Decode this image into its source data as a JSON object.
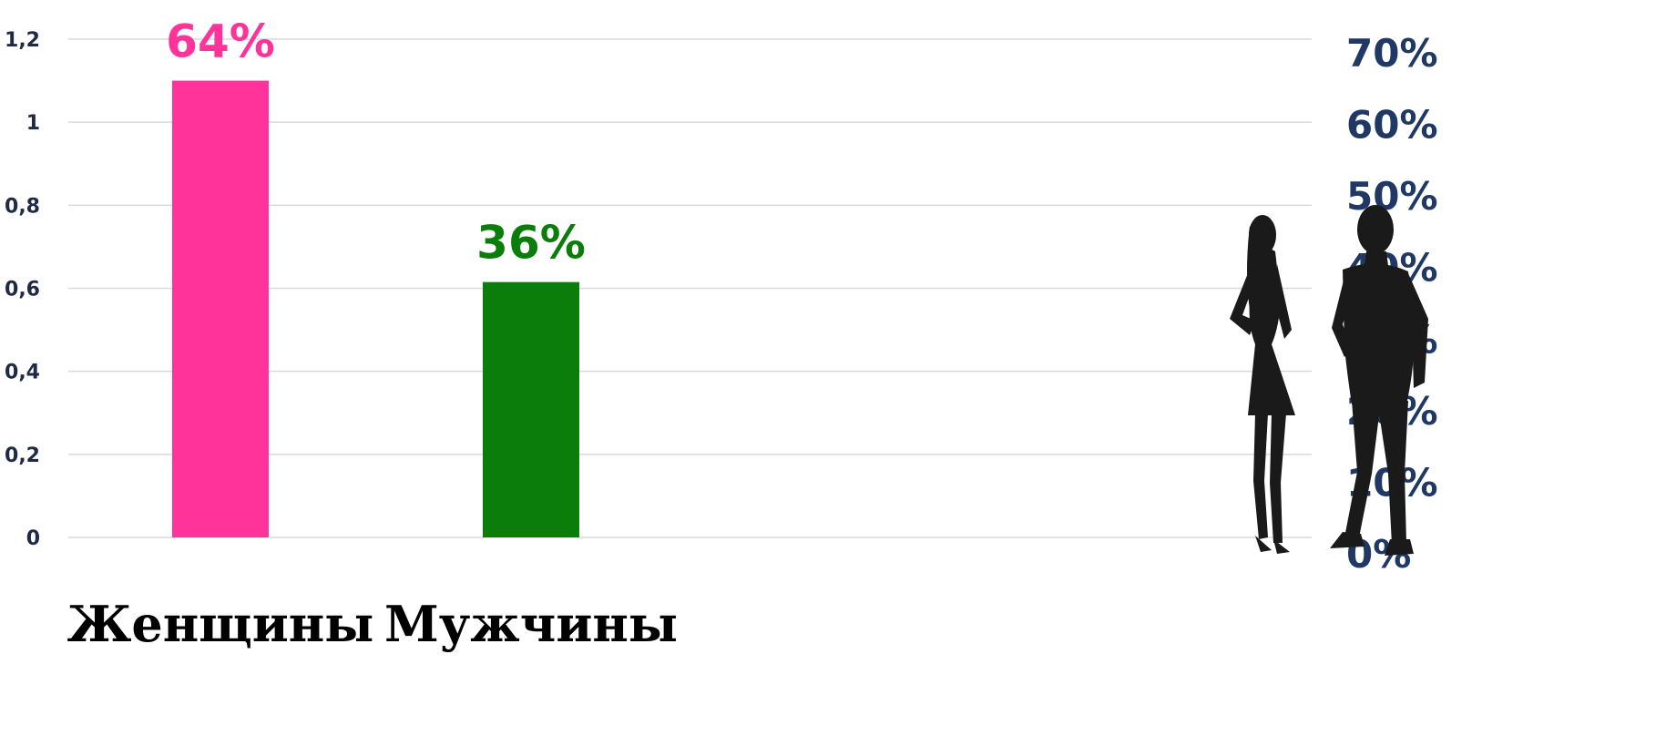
{
  "chart_data": {
    "type": "bar",
    "categories": [
      "Женщины",
      "Мужчины"
    ],
    "values": [
      1.1,
      0.615
    ],
    "data_labels": [
      "64%",
      "36%"
    ],
    "colors": [
      "#ff3399",
      "#0a7d0a"
    ],
    "label_colors": [
      "#ff3399",
      "#0a7d0a"
    ],
    "ylim": [
      0,
      1.2
    ],
    "yticks": [
      "0",
      "0,2",
      "0,4",
      "0,6",
      "0,8",
      "1",
      "1,2"
    ],
    "secondary_ylim": [
      0,
      70
    ],
    "secondary_yticks": [
      "0%",
      "10%",
      "20%",
      "30%",
      "40%",
      "50%",
      "60%",
      "70%"
    ],
    "grid": true,
    "xlabel": "",
    "ylabel": "",
    "title": ""
  },
  "decoration": {
    "icon": "couple-silhouette-icon",
    "fill": "#1a1a1a"
  }
}
